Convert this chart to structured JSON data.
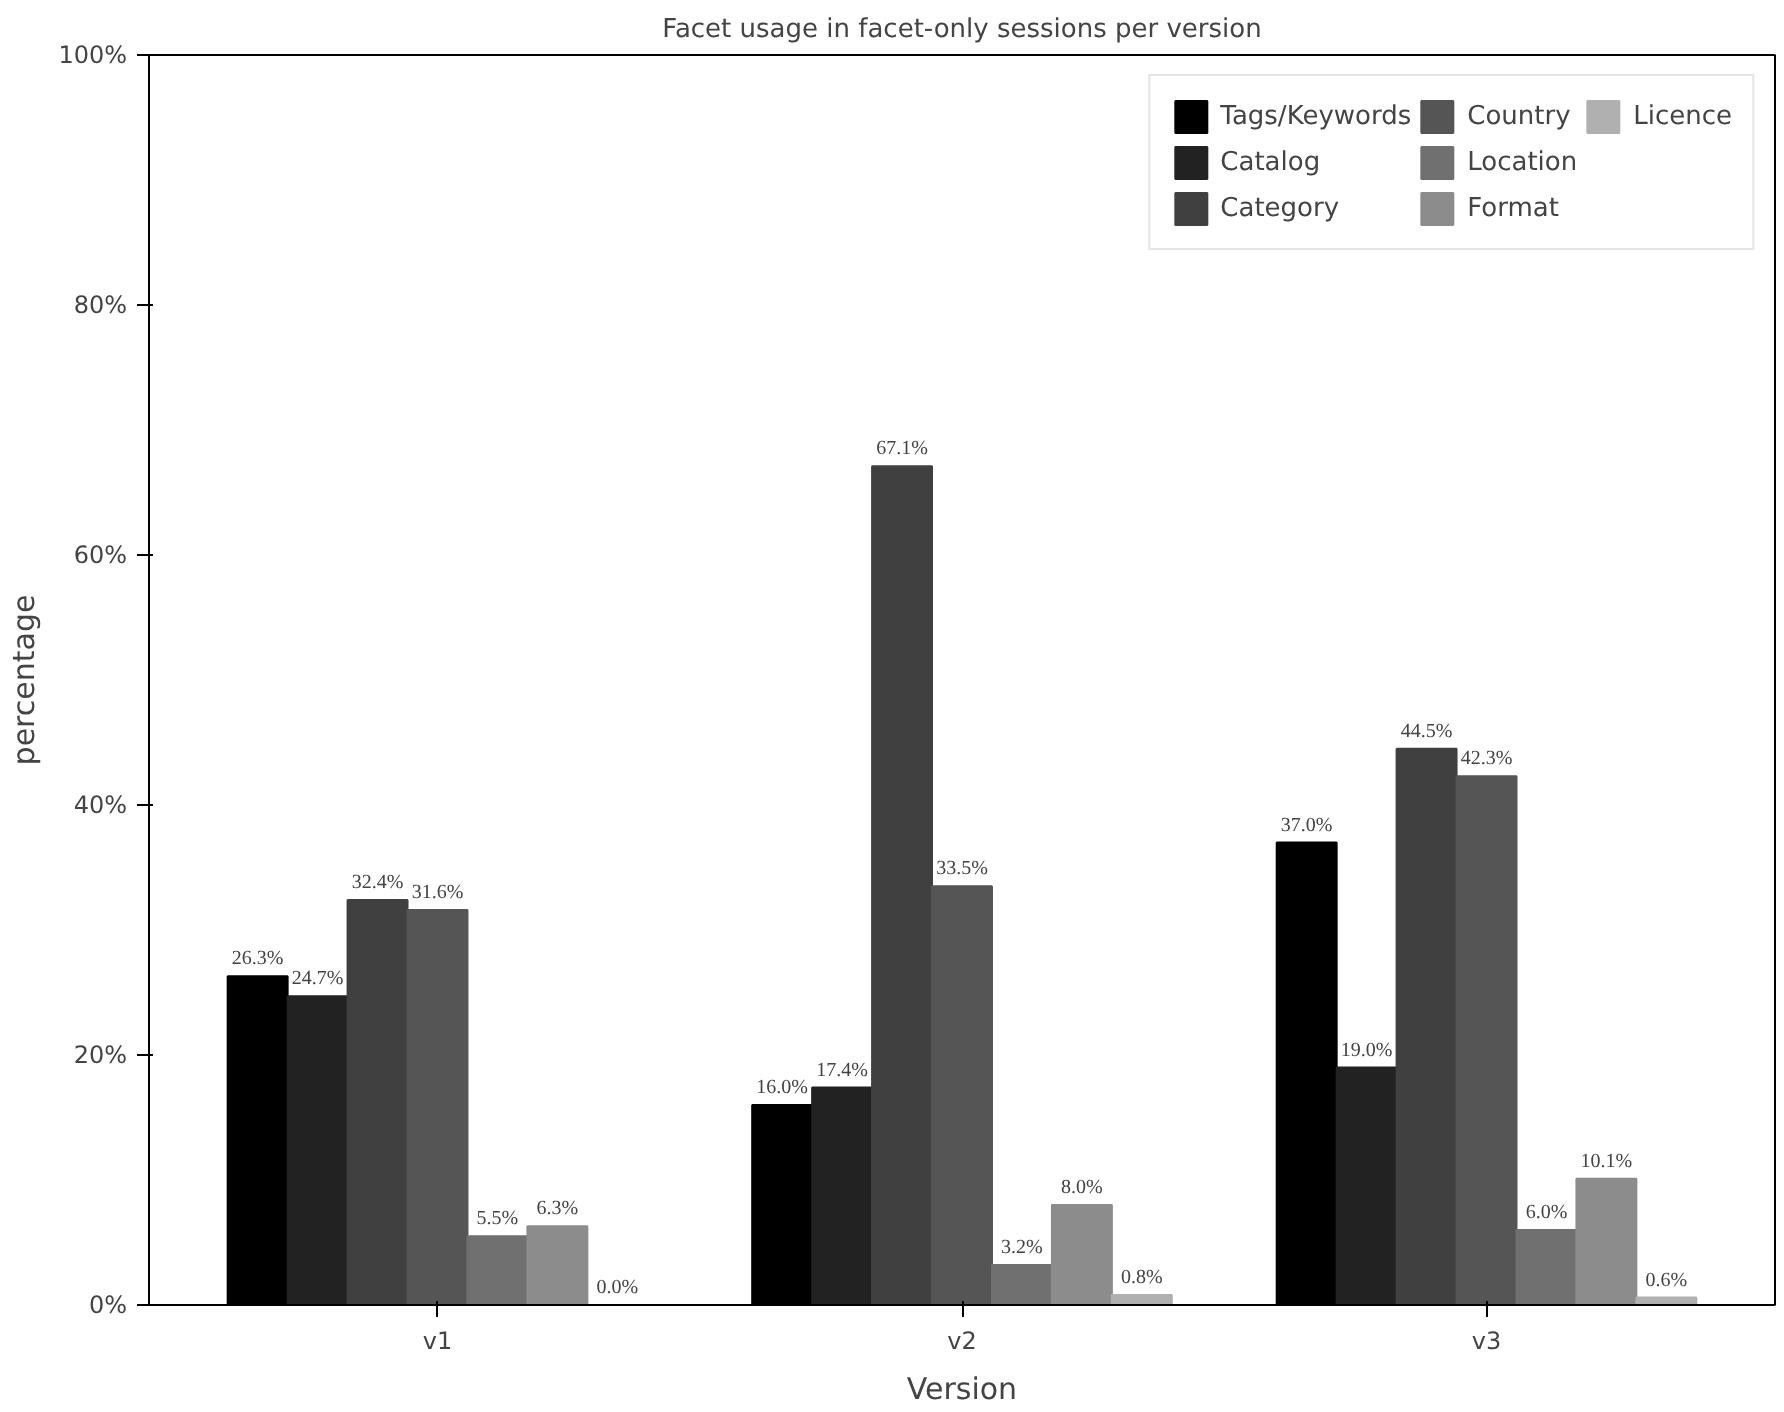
{
  "chart_data": {
    "type": "bar",
    "title": "Facet usage in facet-only sessions per version",
    "xlabel": "Version",
    "ylabel": "percentage",
    "categories": [
      "v1",
      "v2",
      "v3"
    ],
    "series": [
      {
        "name": "Tags/Keywords",
        "color": "#000000",
        "values": [
          26.3,
          16.0,
          37.0
        ],
        "value_labels": [
          "26.3%",
          "16.0%",
          "37.0%"
        ]
      },
      {
        "name": "Catalog",
        "color": "#222222",
        "values": [
          24.7,
          17.4,
          19.0
        ],
        "value_labels": [
          "24.7%",
          "17.4%",
          "19.0%"
        ]
      },
      {
        "name": "Category",
        "color": "#404040",
        "values": [
          32.4,
          67.1,
          44.5
        ],
        "value_labels": [
          "32.4%",
          "67.1%",
          "44.5%"
        ]
      },
      {
        "name": "Country",
        "color": "#555555",
        "values": [
          31.6,
          33.5,
          42.3
        ],
        "value_labels": [
          "31.6%",
          "33.5%",
          "42.3%"
        ]
      },
      {
        "name": "Location",
        "color": "#707070",
        "values": [
          5.5,
          3.2,
          6.0
        ],
        "value_labels": [
          "5.5%",
          "3.2%",
          "6.0%"
        ]
      },
      {
        "name": "Format",
        "color": "#8c8c8c",
        "values": [
          6.3,
          8.0,
          10.1
        ],
        "value_labels": [
          "6.3%",
          "8.0%",
          "10.1%"
        ]
      },
      {
        "name": "Licence",
        "color": "#b0b0b0",
        "values": [
          0.0,
          0.8,
          0.6
        ],
        "value_labels": [
          "0.0%",
          "0.8%",
          "0.6%"
        ]
      }
    ],
    "ylim": [
      0,
      100
    ],
    "yticks": [
      {
        "value": 0,
        "label": "0%"
      },
      {
        "value": 20,
        "label": "20%"
      },
      {
        "value": 40,
        "label": "40%"
      },
      {
        "value": 60,
        "label": "60%"
      },
      {
        "value": 80,
        "label": "80%"
      },
      {
        "value": 100,
        "label": "100%"
      }
    ],
    "legend": "top right",
    "grid": false
  }
}
